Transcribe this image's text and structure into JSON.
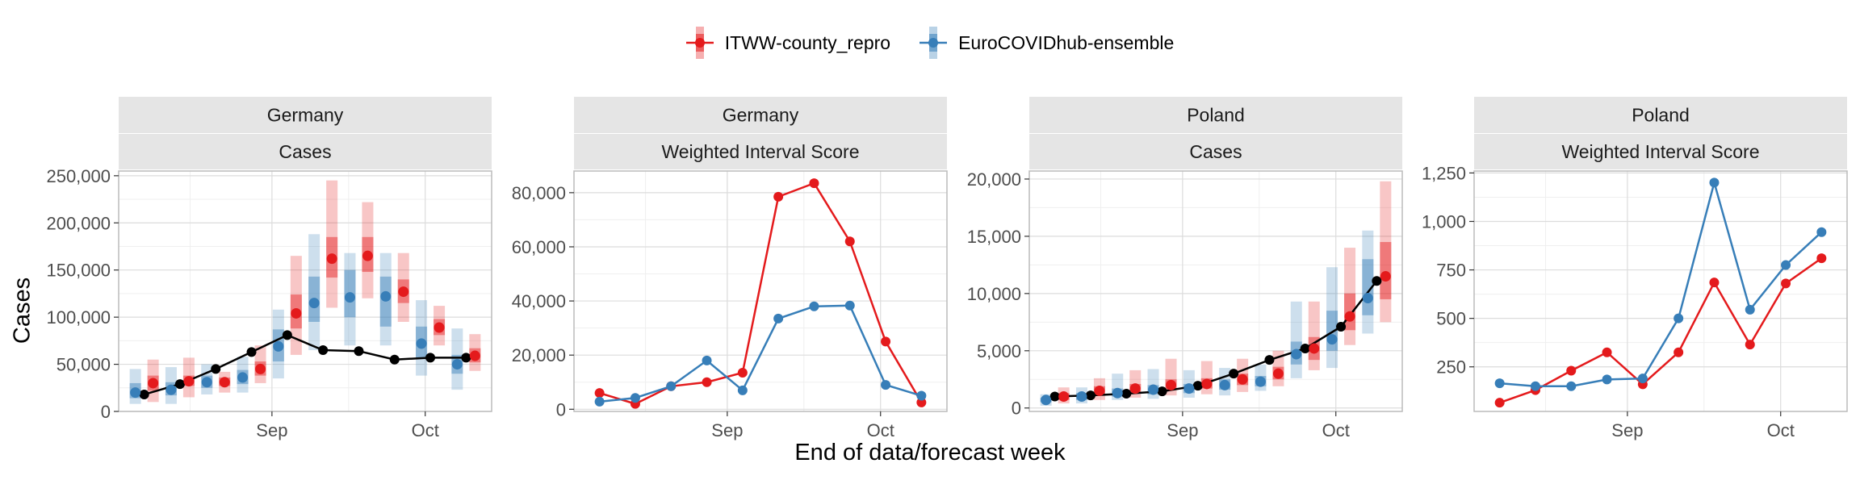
{
  "legend": {
    "items": [
      {
        "label": "ITWW-county_repro",
        "color": "#e41a1c"
      },
      {
        "label": "EuroCOVIDhub-ensemble",
        "color": "#377eb8"
      }
    ]
  },
  "x_axis_title": "End of data/forecast week",
  "y_axis_title": "Cases",
  "colors": {
    "itww": "#e41a1c",
    "hub": "#377eb8",
    "observed": "#000000",
    "strip": "#e5e5e5",
    "grid_major": "#dcdcdc",
    "grid_minor": "#efefef",
    "panel_border": "#bbbbbb"
  },
  "chart_data": [
    {
      "type": "line",
      "strip_top": "Germany",
      "strip_bottom": "Cases",
      "x_ticks": [
        "Sep",
        "Oct"
      ],
      "ylim": [
        0,
        255000
      ],
      "y_ticks": [
        0,
        50000,
        100000,
        150000,
        200000,
        250000
      ],
      "y_tick_labels": [
        "0",
        "50,000",
        "100,000",
        "150,000",
        "200,000",
        "250,000"
      ],
      "x": [
        "2021-08-07",
        "2021-08-14",
        "2021-08-21",
        "2021-08-28",
        "2021-09-04",
        "2021-09-11",
        "2021-09-18",
        "2021-09-25",
        "2021-10-02",
        "2021-10-09"
      ],
      "observed": [
        18000,
        29000,
        45000,
        63000,
        81000,
        65000,
        64000,
        55000,
        57000,
        57000
      ],
      "forecasts": [
        {
          "name": "ITWW-county_repro",
          "median": [
            30000,
            32000,
            31000,
            45000,
            104000,
            162000,
            165000,
            127000,
            89000,
            59000
          ],
          "q05": [
            10000,
            15000,
            20000,
            30000,
            60000,
            110000,
            120000,
            95000,
            70000,
            43000
          ],
          "q25": [
            22000,
            27000,
            27000,
            38000,
            88000,
            142000,
            148000,
            115000,
            81000,
            52000
          ],
          "q75": [
            38000,
            38000,
            36000,
            53000,
            124000,
            185000,
            185000,
            140000,
            98000,
            67000
          ],
          "q95": [
            55000,
            57000,
            42000,
            70000,
            165000,
            245000,
            222000,
            168000,
            112000,
            82000
          ]
        },
        {
          "name": "EuroCOVIDhub-ensemble",
          "median": [
            20000,
            23000,
            31000,
            36000,
            69000,
            115000,
            121000,
            122000,
            72000,
            50000
          ],
          "q05": [
            8000,
            8000,
            18000,
            20000,
            35000,
            65000,
            70000,
            70000,
            38000,
            23000
          ],
          "q25": [
            14000,
            17000,
            25000,
            29000,
            53000,
            95000,
            100000,
            90000,
            57000,
            40000
          ],
          "q75": [
            30000,
            31000,
            38000,
            44000,
            87000,
            143000,
            150000,
            143000,
            90000,
            60000
          ],
          "q95": [
            45000,
            47000,
            50000,
            58000,
            108000,
            188000,
            168000,
            168000,
            118000,
            88000
          ]
        }
      ]
    },
    {
      "type": "line",
      "strip_top": "Germany",
      "strip_bottom": "Weighted Interval Score",
      "x_ticks": [
        "Sep",
        "Oct"
      ],
      "ylim": [
        -800,
        88000
      ],
      "y_ticks": [
        0,
        20000,
        40000,
        60000,
        80000
      ],
      "y_tick_labels": [
        "0",
        "20,000",
        "40,000",
        "60,000",
        "80,000"
      ],
      "x": [
        "2021-08-07",
        "2021-08-14",
        "2021-08-21",
        "2021-08-28",
        "2021-09-04",
        "2021-09-11",
        "2021-09-18",
        "2021-09-25",
        "2021-10-02",
        "2021-10-09"
      ],
      "series": [
        {
          "name": "ITWW-county_repro",
          "values": [
            6000,
            2000,
            8500,
            10000,
            13500,
            78500,
            83500,
            62000,
            25000,
            2500
          ]
        },
        {
          "name": "EuroCOVIDhub-ensemble",
          "values": [
            2800,
            4200,
            8500,
            18000,
            7000,
            33500,
            38000,
            38300,
            9000,
            5000
          ]
        }
      ]
    },
    {
      "type": "line",
      "strip_top": "Poland",
      "strip_bottom": "Cases",
      "x_ticks": [
        "Sep",
        "Oct"
      ],
      "ylim": [
        -300,
        20700
      ],
      "y_ticks": [
        0,
        5000,
        10000,
        15000,
        20000
      ],
      "y_tick_labels": [
        "0",
        "5,000",
        "10,000",
        "15,000",
        "20,000"
      ],
      "x": [
        "2021-08-07",
        "2021-08-14",
        "2021-08-21",
        "2021-08-28",
        "2021-09-04",
        "2021-09-11",
        "2021-09-18",
        "2021-09-25",
        "2021-10-02",
        "2021-10-09"
      ],
      "observed": [
        1000,
        1100,
        1250,
        1450,
        1950,
        3000,
        4200,
        5200,
        7100,
        11100
      ],
      "forecasts": [
        {
          "name": "ITWW-county_repro",
          "median": [
            1000,
            1500,
            1700,
            2000,
            2100,
            2500,
            3000,
            5200,
            8000,
            11500
          ],
          "q05": [
            400,
            700,
            900,
            1100,
            1200,
            1400,
            1900,
            3300,
            5500,
            7500
          ],
          "q25": [
            700,
            1100,
            1300,
            1600,
            1700,
            2000,
            2500,
            4200,
            6800,
            9500
          ],
          "q75": [
            1300,
            1900,
            2100,
            2500,
            2600,
            3000,
            3600,
            6200,
            10000,
            14500
          ],
          "q95": [
            1800,
            2600,
            3300,
            4300,
            4100,
            4300,
            5000,
            9300,
            14000,
            19800
          ]
        },
        {
          "name": "EuroCOVIDhub-ensemble",
          "median": [
            700,
            1000,
            1300,
            1600,
            1700,
            2000,
            2300,
            4700,
            6000,
            9600
          ],
          "q05": [
            200,
            400,
            700,
            800,
            900,
            1100,
            1500,
            2600,
            3500,
            6500
          ],
          "q25": [
            500,
            700,
            1000,
            1200,
            1300,
            1600,
            1900,
            3800,
            5000,
            8100
          ],
          "q75": [
            900,
            1300,
            1700,
            2000,
            2100,
            2500,
            2800,
            5800,
            8500,
            13000
          ],
          "q95": [
            1200,
            1800,
            3000,
            3400,
            3300,
            3500,
            3800,
            9300,
            12300,
            15500
          ]
        }
      ]
    },
    {
      "type": "line",
      "strip_top": "Poland",
      "strip_bottom": "Weighted Interval Score",
      "x_ticks": [
        "Sep",
        "Oct"
      ],
      "ylim": [
        20,
        1260
      ],
      "y_ticks": [
        250,
        500,
        750,
        1000,
        1250
      ],
      "y_tick_labels": [
        "250",
        "500",
        "750",
        "1,000",
        "1,250"
      ],
      "x": [
        "2021-08-07",
        "2021-08-14",
        "2021-08-21",
        "2021-08-28",
        "2021-09-04",
        "2021-09-11",
        "2021-09-18",
        "2021-09-25",
        "2021-10-02",
        "2021-10-09"
      ],
      "series": [
        {
          "name": "ITWW-county_repro",
          "values": [
            65,
            130,
            230,
            325,
            160,
            325,
            685,
            365,
            680,
            810
          ]
        },
        {
          "name": "EuroCOVIDhub-ensemble",
          "values": [
            165,
            150,
            150,
            185,
            190,
            500,
            1200,
            545,
            775,
            945
          ]
        }
      ]
    }
  ]
}
